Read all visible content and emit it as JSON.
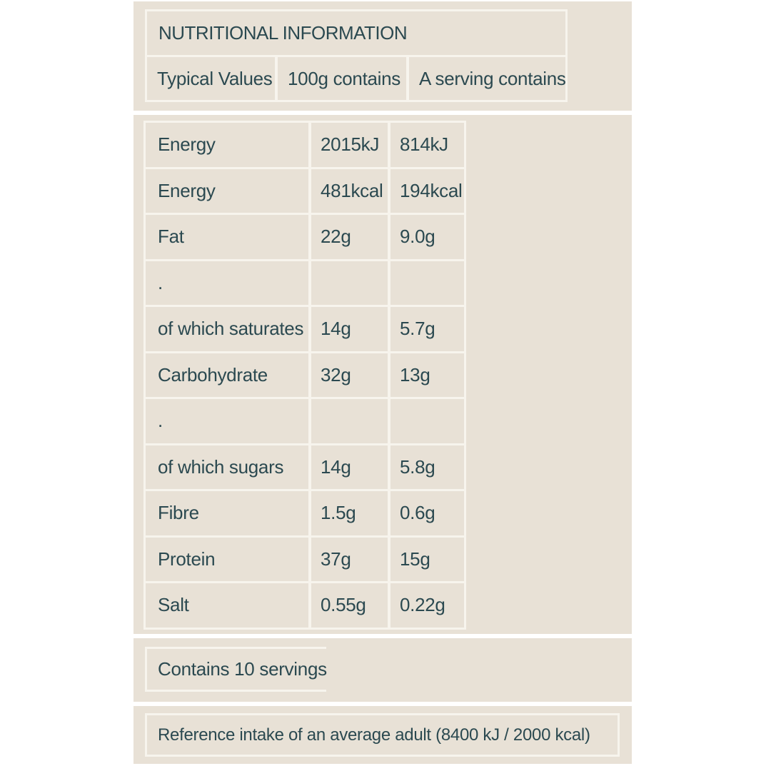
{
  "colors": {
    "page_bg": "#ffffff",
    "panel_bg": "#e8e1d6",
    "divider": "#f7f4ed",
    "text": "#2b4950"
  },
  "header": {
    "title": "NUTRITIONAL INFORMATION",
    "columns": [
      "Typical Values",
      "100g contains",
      "A serving contains"
    ]
  },
  "table": {
    "rows": [
      {
        "label": "Energy",
        "per100g": "2015kJ",
        "per_serving": "814kJ"
      },
      {
        "label": "Energy",
        "per100g": "481kcal",
        "per_serving": "194kcal"
      },
      {
        "label": "Fat",
        "per100g": "22g",
        "per_serving": "9.0g"
      },
      {
        "label": ".",
        "per100g": "",
        "per_serving": ""
      },
      {
        "label": "of which saturates",
        "per100g": "14g",
        "per_serving": "5.7g"
      },
      {
        "label": "Carbohydrate",
        "per100g": "32g",
        "per_serving": "13g"
      },
      {
        "label": ".",
        "per100g": "",
        "per_serving": ""
      },
      {
        "label": "of which sugars",
        "per100g": "14g",
        "per_serving": "5.8g"
      },
      {
        "label": "Fibre",
        "per100g": "1.5g",
        "per_serving": "0.6g"
      },
      {
        "label": "Protein",
        "per100g": "37g",
        "per_serving": "15g"
      },
      {
        "label": "Salt",
        "per100g": "0.55g",
        "per_serving": "0.22g"
      }
    ]
  },
  "footer": {
    "servings": "Contains 10 servings",
    "reference": "Reference intake of an average adult (8400 kJ / 2000 kcal)"
  }
}
